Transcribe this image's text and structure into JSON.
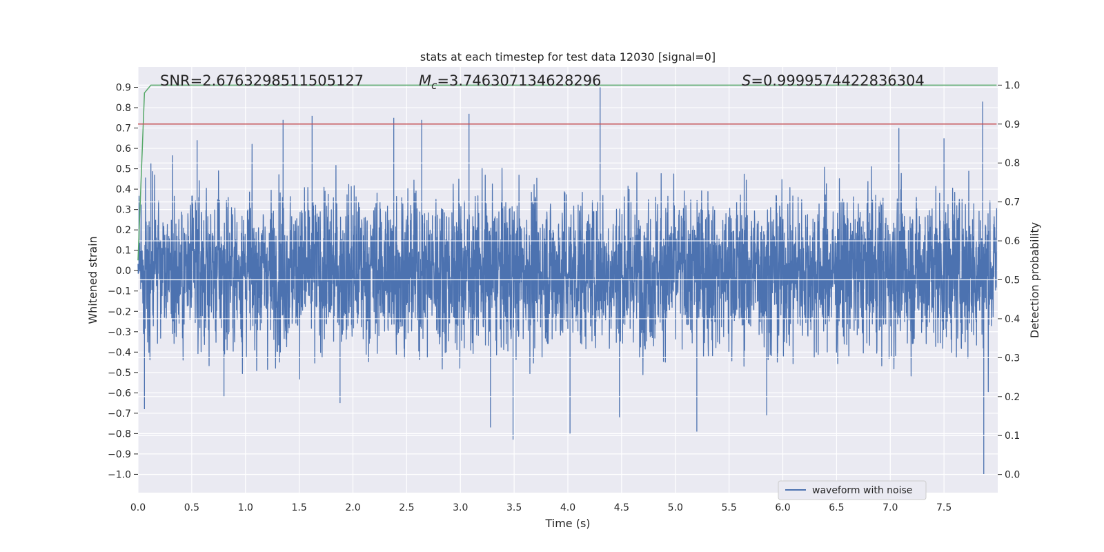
{
  "chart_data": {
    "type": "line",
    "title": "stats at each timestep for test data 12030 [signal=0]",
    "xlabel": "Time (s)",
    "ylabel": "Whitened strain",
    "y2label": "Detection probability",
    "xlim": [
      0.0,
      8.0
    ],
    "ylim": [
      -1.09,
      1.0
    ],
    "y2lim": [
      -0.0467,
      1.0467
    ],
    "xticks": [
      "0.0",
      "0.5",
      "1.0",
      "1.5",
      "2.0",
      "2.5",
      "3.0",
      "3.5",
      "4.0",
      "4.5",
      "5.0",
      "5.5",
      "6.0",
      "6.5",
      "7.0",
      "7.5"
    ],
    "yticks": [
      "0.9",
      "0.8",
      "0.7",
      "0.6",
      "0.5",
      "0.4",
      "0.3",
      "0.2",
      "0.1",
      "0.0",
      "−0.1",
      "−0.2",
      "−0.3",
      "−0.4",
      "−0.5",
      "−0.6",
      "−0.7",
      "−0.8",
      "−0.9",
      "−1.0"
    ],
    "y2ticks": [
      "1.0",
      "0.9",
      "0.8",
      "0.7",
      "0.6",
      "0.5",
      "0.4",
      "0.3",
      "0.2",
      "0.1",
      "0.0"
    ],
    "grid": true,
    "legend": {
      "placement": "lower-right",
      "entries": [
        "waveform with noise"
      ]
    },
    "annotations": {
      "snr": "SNR=2.6763298511505127",
      "mc_symbol": "M",
      "mc_sub": "c",
      "mc_value": "=3.746307134628296",
      "s_symbol": "S",
      "s_value": "=0.9999574422836304"
    },
    "series": [
      {
        "name": "waveform with noise",
        "axis": "left",
        "color": "#4c72b0",
        "duration": 7.99,
        "samples": 4096,
        "typical_amplitude": 0.3,
        "peaks": [
          {
            "x": 0.06,
            "y": -0.68
          },
          {
            "x": 0.12,
            "y": 0.53
          },
          {
            "x": 0.55,
            "y": 0.64
          },
          {
            "x": 0.8,
            "y": -0.62
          },
          {
            "x": 1.35,
            "y": 0.74
          },
          {
            "x": 1.62,
            "y": 0.76
          },
          {
            "x": 1.88,
            "y": -0.65
          },
          {
            "x": 2.38,
            "y": 0.75
          },
          {
            "x": 2.64,
            "y": 0.74
          },
          {
            "x": 3.08,
            "y": 0.77
          },
          {
            "x": 3.28,
            "y": -0.77
          },
          {
            "x": 3.49,
            "y": -0.83
          },
          {
            "x": 4.02,
            "y": -0.8
          },
          {
            "x": 4.3,
            "y": 0.9
          },
          {
            "x": 4.48,
            "y": -0.72
          },
          {
            "x": 5.2,
            "y": -0.79
          },
          {
            "x": 5.85,
            "y": -0.71
          },
          {
            "x": 7.08,
            "y": 0.7
          },
          {
            "x": 7.5,
            "y": 0.65
          },
          {
            "x": 7.86,
            "y": 0.83
          },
          {
            "x": 7.87,
            "y": -1.0
          }
        ]
      },
      {
        "name": "",
        "axis": "right",
        "color": "#55a868",
        "x": [
          0.0,
          0.06,
          0.12,
          0.2,
          1.0,
          2.0,
          3.0,
          4.0,
          5.0,
          6.0,
          7.0,
          7.99
        ],
        "values": [
          0.55,
          0.98,
          1.0,
          1.0,
          1.0,
          1.0,
          1.0,
          1.0,
          1.0,
          1.0,
          1.0,
          1.0
        ]
      },
      {
        "name": "",
        "axis": "right",
        "color": "#c44e52",
        "x": [
          0.0,
          7.99
        ],
        "values": [
          0.9,
          0.9
        ]
      }
    ]
  }
}
